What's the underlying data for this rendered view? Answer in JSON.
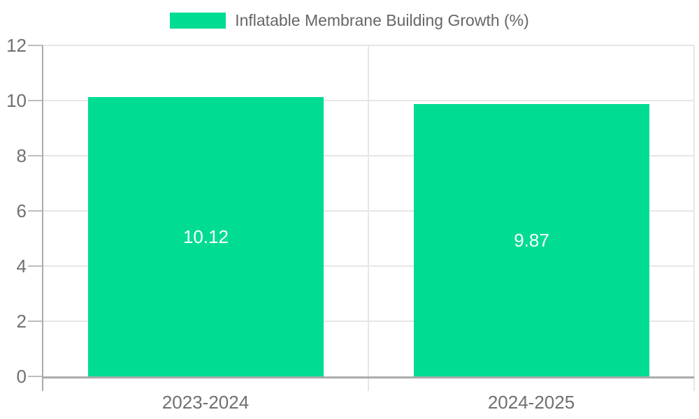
{
  "chart_data": {
    "type": "bar",
    "title": "",
    "categories": [
      "2023-2024",
      "2024-2025"
    ],
    "series": [
      {
        "name": "Inflatable Membrane Building Growth (%)",
        "values": [
          10.12,
          9.87
        ]
      }
    ],
    "data_labels": [
      "10.12",
      "9.87"
    ],
    "xlabel": "",
    "ylabel": "",
    "ylim": [
      0,
      12
    ],
    "yticks": [
      0,
      2,
      4,
      6,
      8,
      10,
      12
    ],
    "grid": "horizontal gridlines on, vertical category separators on",
    "legend_position": "top-center",
    "colors": {
      "bar": "#00DC92",
      "grid": "#e6e6e6",
      "axis": "#ababab",
      "tick": "#bdbdbd",
      "tick_label": "#707070",
      "data_label": "#ffffff",
      "legend_text": "#666666",
      "background": "#ffffff"
    }
  }
}
